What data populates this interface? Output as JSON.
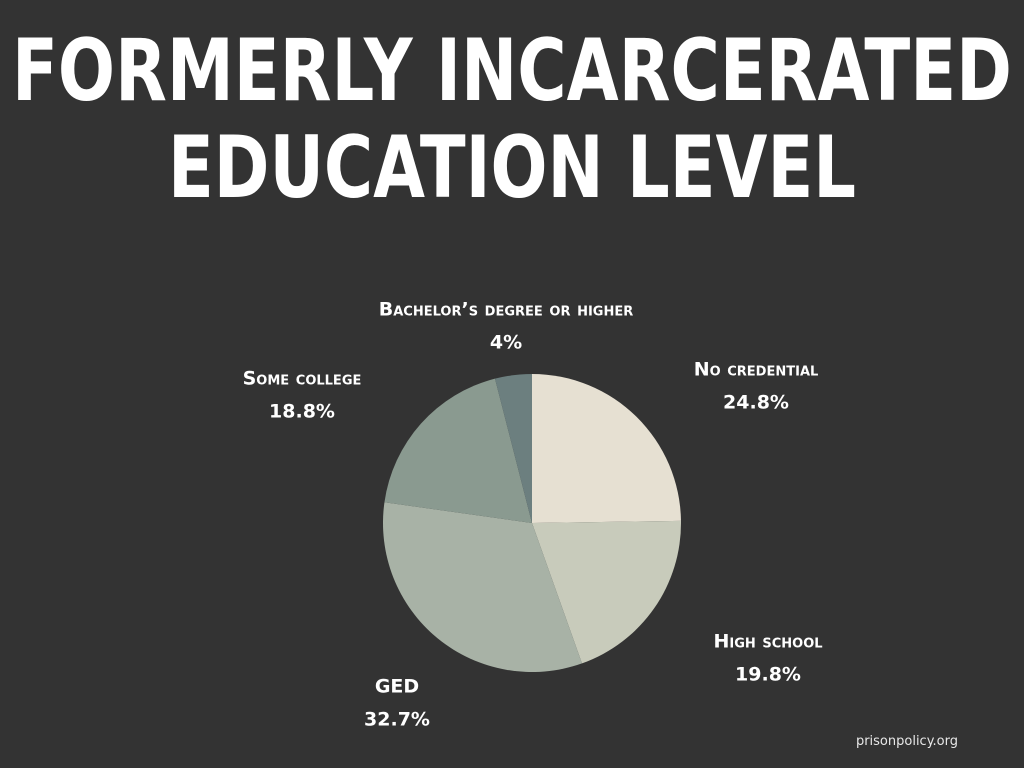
{
  "chart_data": {
    "type": "pie",
    "title": [
      "FORMERLY INCARCERATED",
      "EDUCATION LEVEL"
    ],
    "categories": [
      "No credential",
      "High school",
      "GED",
      "Some college",
      "Bachelor’s degree or higher"
    ],
    "values": [
      24.8,
      19.8,
      32.7,
      18.8,
      4
    ],
    "value_labels": [
      "24.8%",
      "19.8%",
      "32.7%",
      "18.8%",
      "4%"
    ],
    "colors": [
      "#e6e0d2",
      "#c8cbbb",
      "#a8b2a6",
      "#8a9a90",
      "#6c7f7f"
    ],
    "source": "prisonpolicy.org"
  }
}
